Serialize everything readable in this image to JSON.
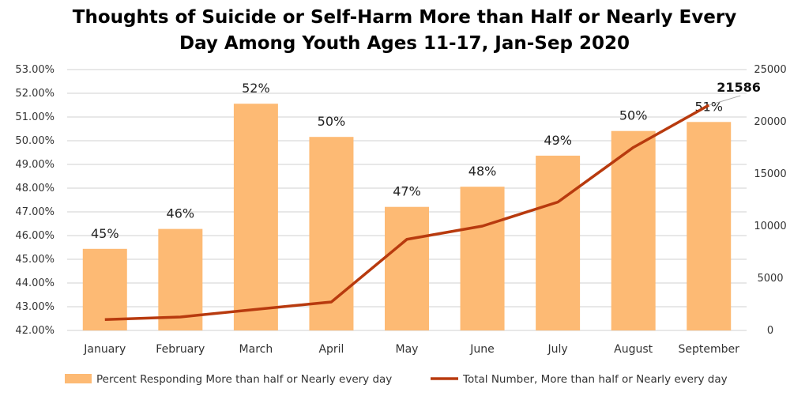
{
  "chart_data": {
    "type": "bar+line",
    "title": "Thoughts of Suicide or Self-Harm More than Half or Nearly Every Day Among Youth Ages 11-17, Jan-Sep 2020",
    "title_lines": [
      "Thoughts of Suicide or Self-Harm More than Half or Nearly Every",
      "Day Among Youth Ages 11-17, Jan-Sep 2020"
    ],
    "categories": [
      "January",
      "February",
      "March",
      "April",
      "May",
      "June",
      "July",
      "August",
      "September"
    ],
    "left_axis": {
      "ylim": [
        42,
        53
      ],
      "ticks": [
        "42.00%",
        "43.00%",
        "44.00%",
        "45.00%",
        "46.00%",
        "47.00%",
        "48.00%",
        "49.00%",
        "50.00%",
        "51.00%",
        "52.00%",
        "53.00%"
      ]
    },
    "right_axis": {
      "ylim": [
        0,
        25000
      ],
      "ticks": [
        "0",
        "5000",
        "10000",
        "15000",
        "20000",
        "25000"
      ]
    },
    "grid": true,
    "legend_position": "bottom",
    "series": [
      {
        "name": "Percent Responding More than half or Nearly every day",
        "type": "bar",
        "axis": "left",
        "color": "#FDBA74",
        "values": [
          45.44,
          46.28,
          51.56,
          50.16,
          47.21,
          48.06,
          49.37,
          50.41,
          50.79
        ],
        "labels": [
          "45%",
          "46%",
          "52%",
          "50%",
          "47%",
          "48%",
          "49%",
          "50%",
          "51%"
        ]
      },
      {
        "name": "Total Number, More than half or Nearly every day",
        "type": "line",
        "axis": "right",
        "color": "#B83A0E",
        "values": [
          1040,
          1290,
          2020,
          2730,
          8730,
          10000,
          12300,
          17540,
          21586
        ],
        "end_label": "21586"
      }
    ]
  }
}
